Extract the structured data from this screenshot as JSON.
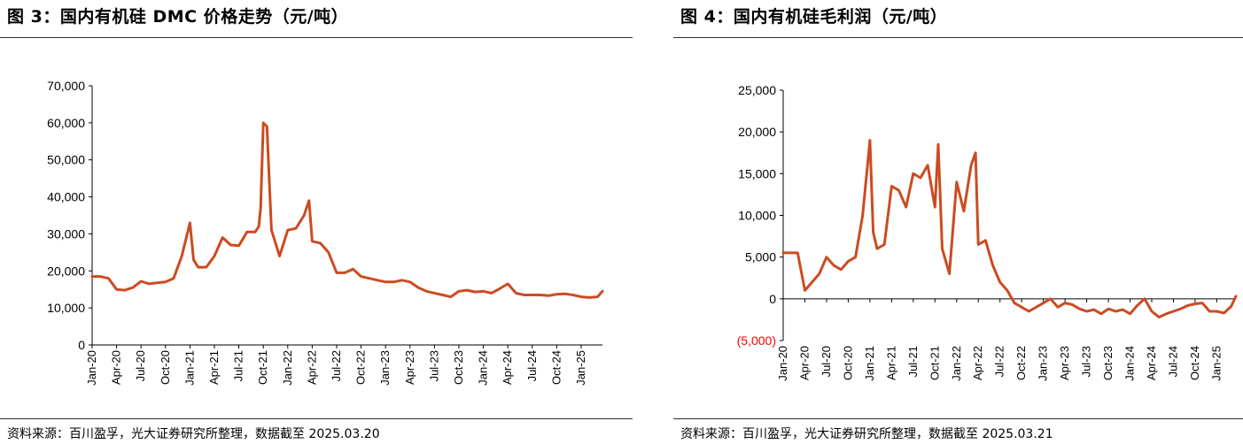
{
  "figures": [
    {
      "title": "图 3：国内有机硅 DMC 价格走势（元/吨）",
      "source": "资料来源：百川盈孚，光大证券研究所整理，数据截至 2025.03.20"
    },
    {
      "title": "图 4：国内有机硅毛利润（元/吨）",
      "source": "资料来源：百川盈孚，光大证券研究所整理，数据截至 2025.03.21"
    }
  ],
  "colors": {
    "series": "#cc4b21",
    "axis": "#000000",
    "negative_label": "#ff0000"
  },
  "chart_data": [
    {
      "type": "line",
      "title": "",
      "xlabel": "",
      "ylabel": "",
      "ylim": [
        0,
        70000
      ],
      "ytick_labels": [
        "0",
        "10,000",
        "20,000",
        "30,000",
        "40,000",
        "50,000",
        "60,000",
        "70,000"
      ],
      "xtick_labels": [
        "Jan-20",
        "Apr-20",
        "Jul-20",
        "Oct-20",
        "Jan-21",
        "Apr-21",
        "Jul-21",
        "Oct-21",
        "Jan-22",
        "Apr-22",
        "Jul-22",
        "Oct-22",
        "Jan-23",
        "Apr-23",
        "Jul-23",
        "Oct-23",
        "Jan-24",
        "Apr-24",
        "Jul-24",
        "Oct-24",
        "Jan-25"
      ],
      "xlim": [
        "2020-01",
        "2025-03-20"
      ],
      "grid": false,
      "legend": "none",
      "series": [
        {
          "x": [
            "2020-01",
            "2020-02",
            "2020-03",
            "2020-04",
            "2020-05",
            "2020-06",
            "2020-07",
            "2020-08",
            "2020-09",
            "2020-10",
            "2020-11",
            "2020-12",
            "2021-01",
            "2021-01-15",
            "2021-02",
            "2021-03",
            "2021-04",
            "2021-05",
            "2021-06",
            "2021-07",
            "2021-08",
            "2021-09",
            "2021-09-15",
            "2021-09-22",
            "2021-10",
            "2021-10-15",
            "2021-11",
            "2021-12",
            "2022-01",
            "2022-02",
            "2022-03",
            "2022-03-20",
            "2022-04",
            "2022-05",
            "2022-06",
            "2022-07",
            "2022-08",
            "2022-09",
            "2022-10",
            "2022-11",
            "2022-12",
            "2023-01",
            "2023-02",
            "2023-03",
            "2023-04",
            "2023-05",
            "2023-06",
            "2023-07",
            "2023-08",
            "2023-09",
            "2023-10",
            "2023-11",
            "2023-12",
            "2024-01",
            "2024-02",
            "2024-03",
            "2024-04",
            "2024-05",
            "2024-06",
            "2024-07",
            "2024-08",
            "2024-09",
            "2024-10",
            "2024-11",
            "2024-12",
            "2025-01",
            "2025-02",
            "2025-03",
            "2025-03-20"
          ],
          "y": [
            18500,
            18500,
            18000,
            15000,
            14800,
            15500,
            17200,
            16500,
            16800,
            17000,
            18000,
            24000,
            33000,
            23000,
            21000,
            21000,
            24000,
            29000,
            27000,
            26800,
            30500,
            30500,
            32000,
            37000,
            60000,
            59000,
            31000,
            24000,
            31000,
            31500,
            35000,
            39000,
            28000,
            27500,
            25000,
            19500,
            19500,
            20500,
            18500,
            18000,
            17500,
            17000,
            17000,
            17500,
            17000,
            15500,
            14500,
            14000,
            13500,
            13000,
            14500,
            14800,
            14300,
            14500,
            14000,
            15200,
            16500,
            14000,
            13500,
            13500,
            13500,
            13300,
            13700,
            13800,
            13500,
            13000,
            12800,
            13000,
            14500
          ]
        }
      ]
    },
    {
      "type": "line",
      "title": "",
      "xlabel": "",
      "ylabel": "",
      "ylim": [
        -5000,
        25000
      ],
      "ytick_labels": [
        "(5,000)",
        "0",
        "5,000",
        "10,000",
        "15,000",
        "20,000",
        "25,000"
      ],
      "xtick_labels": [
        "Jan-20",
        "Apr-20",
        "Jul-20",
        "Oct-20",
        "Jan-21",
        "Apr-21",
        "Jul-21",
        "Oct-21",
        "Jan-22",
        "Apr-22",
        "Jul-22",
        "Oct-22",
        "Jan-23",
        "Apr-23",
        "Jul-23",
        "Oct-23",
        "Jan-24",
        "Apr-24",
        "Jul-24",
        "Oct-24",
        "Jan-25"
      ],
      "xlim": [
        "2020-01",
        "2025-03-21"
      ],
      "grid": false,
      "legend": "none",
      "series": [
        {
          "x": [
            "2020-01",
            "2020-02",
            "2020-03",
            "2020-04",
            "2020-05",
            "2020-06",
            "2020-07",
            "2020-08",
            "2020-09",
            "2020-10",
            "2020-11",
            "2020-12",
            "2021-01",
            "2021-01-15",
            "2021-02",
            "2021-03",
            "2021-04",
            "2021-05",
            "2021-06",
            "2021-07",
            "2021-08",
            "2021-09",
            "2021-10",
            "2021-10-15",
            "2021-11",
            "2021-12",
            "2022-01",
            "2022-02",
            "2022-03",
            "2022-03-20",
            "2022-04",
            "2022-05",
            "2022-06",
            "2022-07",
            "2022-08",
            "2022-09",
            "2022-10",
            "2022-11",
            "2022-12",
            "2023-01",
            "2023-02",
            "2023-03",
            "2023-04",
            "2023-05",
            "2023-06",
            "2023-07",
            "2023-08",
            "2023-09",
            "2023-10",
            "2023-11",
            "2023-12",
            "2024-01",
            "2024-02",
            "2024-03",
            "2024-04",
            "2024-05",
            "2024-06",
            "2024-07",
            "2024-08",
            "2024-09",
            "2024-10",
            "2024-11",
            "2024-12",
            "2025-01",
            "2025-02",
            "2025-03",
            "2025-03-21"
          ],
          "y": [
            5500,
            5500,
            5500,
            1000,
            2000,
            3000,
            5000,
            4000,
            3500,
            4500,
            5000,
            10000,
            19000,
            8000,
            6000,
            6500,
            13500,
            13000,
            11000,
            15000,
            14500,
            16000,
            11000,
            18500,
            6000,
            3000,
            14000,
            10500,
            16000,
            17500,
            6500,
            7000,
            4000,
            2000,
            1000,
            -500,
            -1000,
            -1500,
            -1000,
            -500,
            0,
            -1000,
            -500,
            -700,
            -1200,
            -1500,
            -1300,
            -1800,
            -1200,
            -1500,
            -1300,
            -1800,
            -800,
            0,
            -1500,
            -2200,
            -1800,
            -1500,
            -1200,
            -800,
            -600,
            -500,
            -1500,
            -1500,
            -1700,
            -900,
            300
          ]
        }
      ]
    }
  ]
}
